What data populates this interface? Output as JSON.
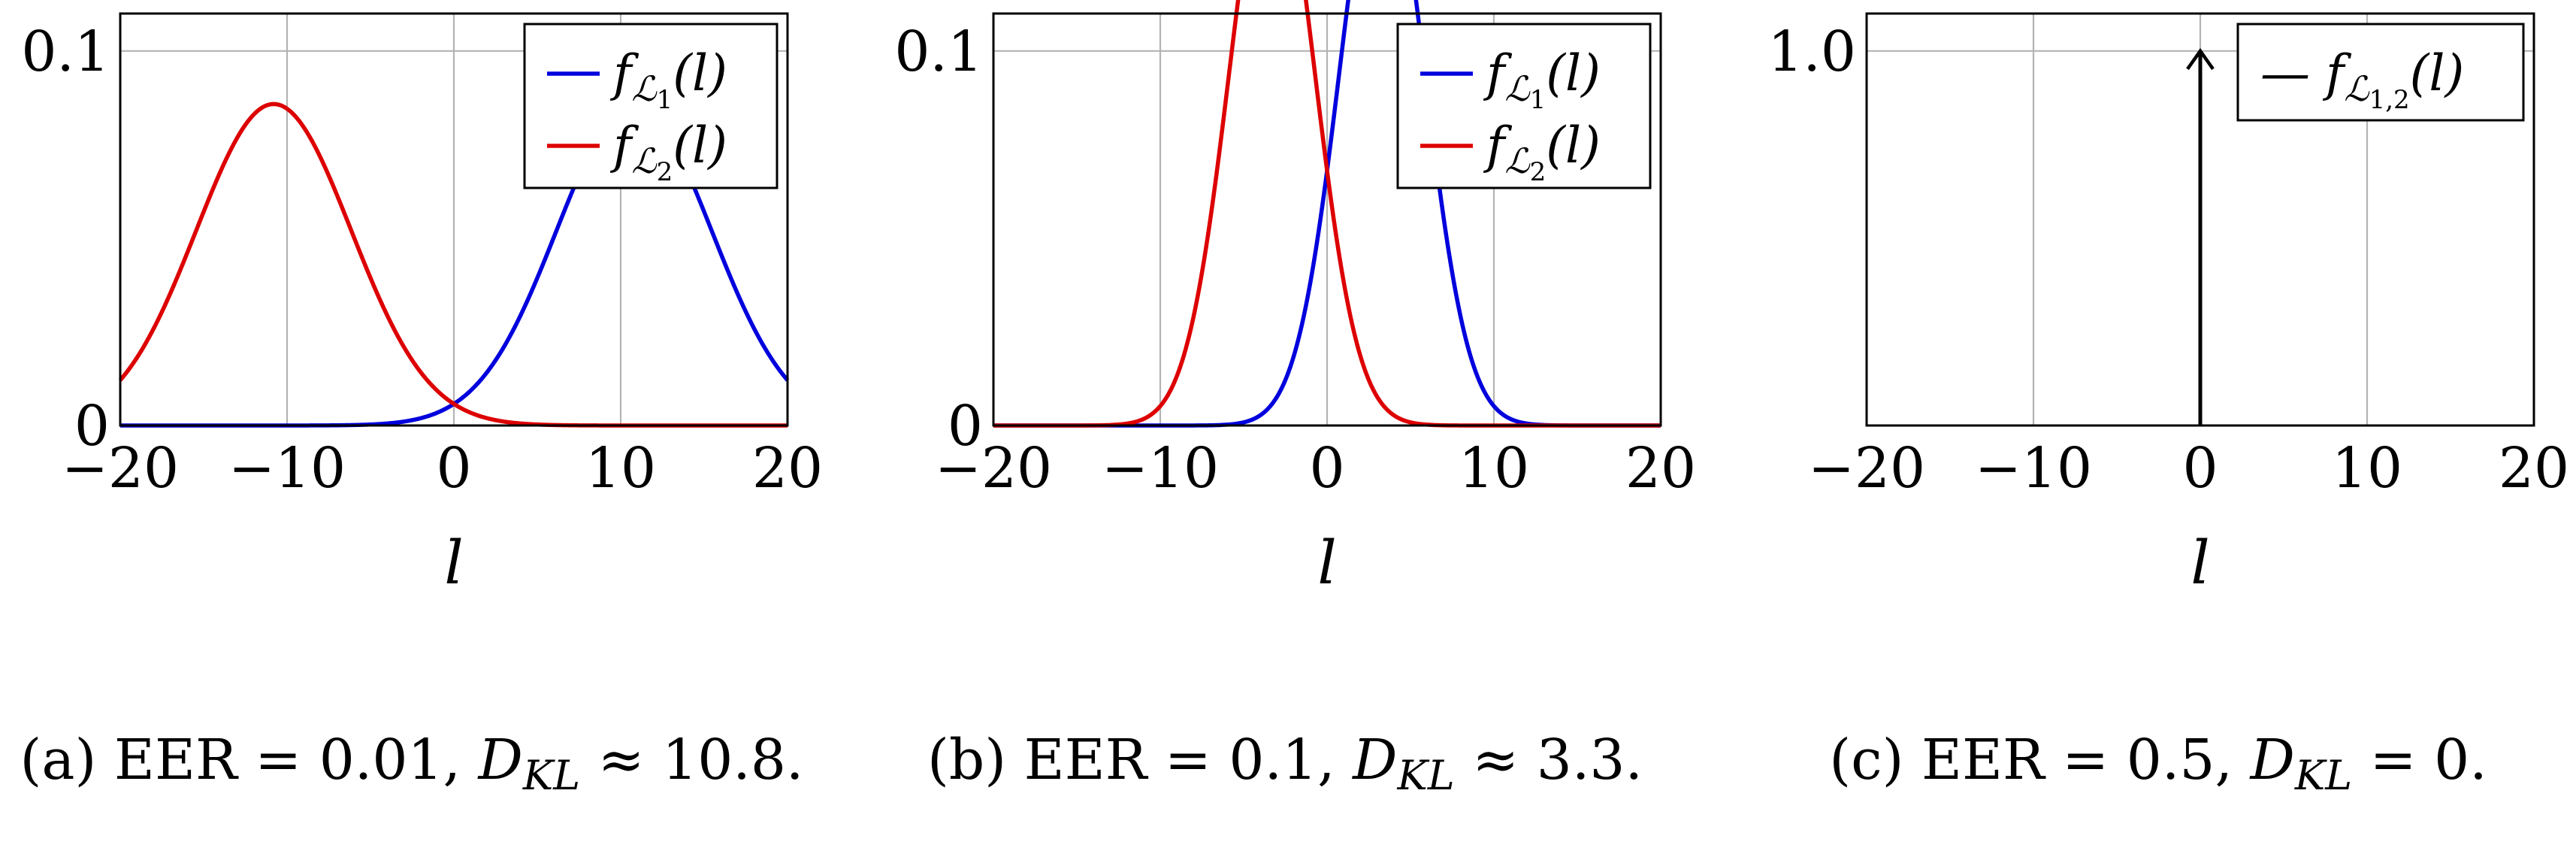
{
  "chart_data": [
    {
      "type": "line",
      "panel": "a",
      "xlabel": "l",
      "xlim": [
        -20,
        20
      ],
      "ylim": [
        0,
        0.11
      ],
      "xticks": [
        "−20",
        "−10",
        "0",
        "10",
        "20"
      ],
      "yticks": [
        "0",
        "0.1"
      ],
      "grid": true,
      "legend_position": "top-right",
      "series": [
        {
          "name": "f_L1(l)",
          "legend": [
            "f",
            "ℒ",
            "1",
            "(l)"
          ],
          "color": "#0000dd",
          "mean": 10.8,
          "variance": 21.6
        },
        {
          "name": "f_L2(l)",
          "legend": [
            "f",
            "ℒ",
            "2",
            "(l)"
          ],
          "color": "#dd0000",
          "mean": -10.8,
          "variance": 21.6
        }
      ],
      "caption": "(a) EER = 0.01, D_KL ≈ 10.8.",
      "caption_parts": {
        "prefix": "(a) EER = 0.01, ",
        "symbol": "D",
        "sub": "KL",
        "suffix": " ≈ 10.8."
      }
    },
    {
      "type": "line",
      "panel": "b",
      "xlabel": "l",
      "xlim": [
        -20,
        20
      ],
      "ylim": [
        0,
        0.11
      ],
      "xticks": [
        "−20",
        "−10",
        "0",
        "10",
        "20"
      ],
      "yticks": [
        "0",
        "0.1"
      ],
      "grid": true,
      "legend_position": "top-right",
      "series": [
        {
          "name": "f_L1(l)",
          "legend": [
            "f",
            "ℒ",
            "1",
            "(l)"
          ],
          "color": "#0000dd",
          "mean": 3.3,
          "variance": 6.6
        },
        {
          "name": "f_L2(l)",
          "legend": [
            "f",
            "ℒ",
            "2",
            "(l)"
          ],
          "color": "#dd0000",
          "mean": -3.3,
          "variance": 6.6
        }
      ],
      "caption": "(b) EER = 0.1, D_KL ≈ 3.3.",
      "caption_parts": {
        "prefix": "(b) EER = 0.1, ",
        "symbol": "D",
        "sub": "KL",
        "suffix": " ≈ 3.3."
      }
    },
    {
      "type": "line",
      "panel": "c",
      "xlabel": "l",
      "xlim": [
        -20,
        20
      ],
      "ylim": [
        0,
        1.1
      ],
      "xticks": [
        "−20",
        "−10",
        "0",
        "10",
        "20"
      ],
      "yticks": [
        "1.0"
      ],
      "grid": true,
      "legend_position": "top-right",
      "series": [
        {
          "name": "f_L1,2(l)",
          "legend": [
            "— f",
            "ℒ",
            "1,2",
            "(l)"
          ],
          "color": "#000000",
          "impulse_at": 0,
          "height": 1.0
        }
      ],
      "caption": "(c) EER = 0.5, D_KL = 0.",
      "caption_parts": {
        "prefix": "(c) EER = 0.5, ",
        "symbol": "D",
        "sub": "KL",
        "suffix": " = 0."
      }
    }
  ]
}
